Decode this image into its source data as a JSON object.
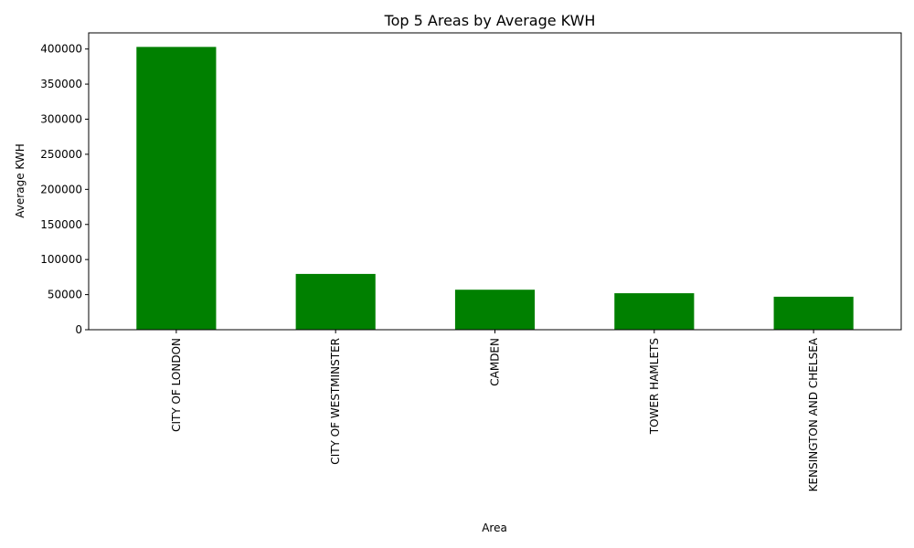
{
  "chart_data": {
    "type": "bar",
    "title": "Top 5 Areas by Average KWH",
    "xlabel": "Area",
    "ylabel": "Average KWH",
    "categories": [
      "CITY OF LONDON",
      "CITY OF WESTMINSTER",
      "CAMDEN",
      "TOWER HAMLETS",
      "KENSINGTON AND CHELSEA"
    ],
    "values": [
      403000,
      79500,
      57000,
      52000,
      47000
    ],
    "ylim": [
      0,
      423000
    ],
    "yticks": [
      0,
      50000,
      100000,
      150000,
      200000,
      250000,
      300000,
      350000,
      400000
    ],
    "bar_color": "#008000",
    "grid": false,
    "legend": "none"
  }
}
